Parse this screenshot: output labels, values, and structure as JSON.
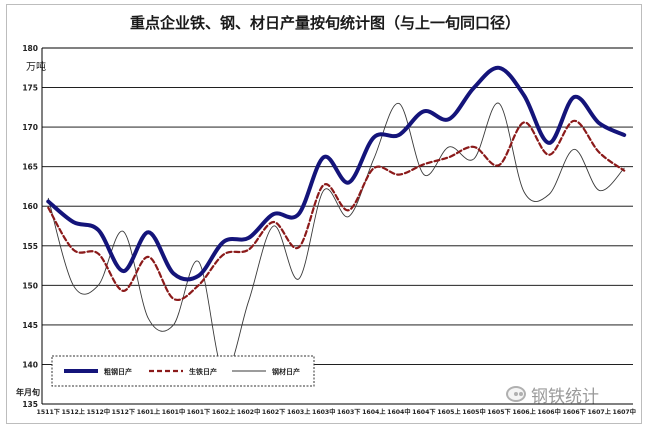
{
  "chart_data": {
    "type": "line",
    "title": "重点企业铁、钢、材日产量按旬统计图（与上一旬同口径）",
    "ylabel": "万吨",
    "xlabel": "年月旬",
    "ylim": [
      135,
      180
    ],
    "yticks": [
      135,
      140,
      145,
      150,
      155,
      160,
      165,
      170,
      175,
      180
    ],
    "grid": true,
    "legend_position": "lower-left",
    "categories": [
      "1511下",
      "1512上",
      "1512中",
      "1512下",
      "1601上",
      "1601中",
      "1601下",
      "1602上",
      "1602中",
      "1602下",
      "1603上",
      "1603中",
      "1603下",
      "1604上",
      "1604中",
      "1604下",
      "1605上",
      "1605中",
      "1605下",
      "1606上",
      "1606中",
      "1606下",
      "1607上",
      "1607中"
    ],
    "series": [
      {
        "name": "粗钢日产",
        "color": "#14147a",
        "style": "solid-thick",
        "values": [
          160.6,
          158.0,
          157.0,
          151.8,
          156.7,
          151.5,
          151.2,
          155.5,
          156.0,
          159.0,
          159.0,
          166.2,
          163.0,
          168.7,
          169.0,
          172.0,
          171.0,
          175.0,
          177.5,
          174.0,
          168.0,
          173.8,
          170.5,
          169.0
        ]
      },
      {
        "name": "生铁日产",
        "color": "#8b1a1a",
        "style": "dashed",
        "values": [
          159.8,
          154.5,
          154.0,
          149.3,
          153.6,
          148.3,
          150.0,
          153.9,
          154.5,
          158.0,
          154.8,
          162.7,
          159.5,
          164.8,
          164.0,
          165.3,
          166.2,
          167.5,
          165.2,
          170.6,
          166.5,
          170.8,
          166.8,
          164.5
        ]
      },
      {
        "name": "钢材日产",
        "color": "#3a3a3a",
        "style": "thin",
        "values": [
          161.0,
          150.0,
          150.0,
          156.8,
          145.8,
          145.0,
          153.0,
          139.0,
          148.0,
          157.5,
          150.8,
          162.0,
          158.7,
          166.0,
          173.0,
          164.0,
          167.5,
          166.0,
          173.0,
          161.8,
          161.5,
          167.2,
          162.0,
          164.8
        ]
      }
    ]
  },
  "watermark": {
    "text": "钢铁统计"
  }
}
